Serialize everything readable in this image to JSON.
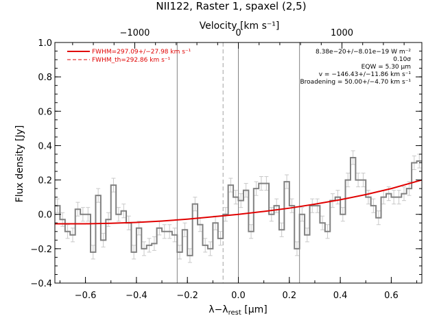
{
  "chart_data": {
    "type": "line",
    "title": "NII122, Raster 1, spaxel (2,5)",
    "xlabel": "λ−λrest [μm]",
    "xlabel_parts": {
      "main": "λ−λ",
      "sub": "rest",
      "unit": " [μm]"
    },
    "ylabel": "Flux density [Jy]",
    "top_axis_label": "Velocity [km s⁻¹]",
    "xlim": [
      -0.72,
      0.72
    ],
    "ylim": [
      -0.4,
      1.0
    ],
    "x_ticks": [
      "−0.6",
      "−0.4",
      "−0.2",
      "0.0",
      "0.2",
      "0.4",
      "0.6"
    ],
    "x_tick_values": [
      -0.6,
      -0.4,
      -0.2,
      0.0,
      0.2,
      0.4,
      0.6
    ],
    "y_ticks": [
      "−0.4",
      "−0.2",
      "0.0",
      "0.2",
      "0.4",
      "0.6",
      "0.8",
      "1.0"
    ],
    "y_tick_values": [
      -0.4,
      -0.2,
      0.0,
      0.2,
      0.4,
      0.6,
      0.8,
      1.0
    ],
    "top_ticks": [
      "−1000",
      "0",
      "1000"
    ],
    "top_tick_values": [
      -1000,
      0,
      1000
    ],
    "velocity_per_micron": 2460,
    "vertical_lines": {
      "solid": [
        -0.24,
        0.0,
        0.24
      ],
      "dashed": [
        -0.06
      ]
    },
    "legend": [
      {
        "label": "FWHM=297.09+/−27.98 km s⁻¹",
        "style": "solid",
        "color": "#e00000"
      },
      {
        "label": "FWHM_th=292.86 km s⁻¹",
        "style": "dashed",
        "color": "#e00000"
      }
    ],
    "annotations": [
      "8.38e−20+/−8.01e−19 W m⁻²",
      "0.10σ",
      "EQW = 5.30 μm",
      "v = −146.43+/−11.86 km s⁻¹",
      "Broadening = 50.00+/−4.70 km s⁻¹"
    ],
    "series": [
      {
        "style": "steps",
        "color": "#808080",
        "x": [
          -0.71,
          -0.69,
          -0.67,
          -0.65,
          -0.63,
          -0.61,
          -0.59,
          -0.57,
          -0.55,
          -0.53,
          -0.51,
          -0.49,
          -0.47,
          -0.45,
          -0.43,
          -0.41,
          -0.39,
          -0.37,
          -0.35,
          -0.33,
          -0.31,
          -0.29,
          -0.27,
          -0.25,
          -0.23,
          -0.21,
          -0.19,
          -0.17,
          -0.15,
          -0.13,
          -0.11,
          -0.09,
          -0.07,
          -0.05,
          -0.03,
          -0.01,
          0.01,
          0.03,
          0.05,
          0.07,
          0.09,
          0.11,
          0.13,
          0.15,
          0.17,
          0.19,
          0.21,
          0.23,
          0.25,
          0.27,
          0.29,
          0.31,
          0.33,
          0.35,
          0.37,
          0.39,
          0.41,
          0.43,
          0.45,
          0.47,
          0.49,
          0.51,
          0.53,
          0.55,
          0.57,
          0.59,
          0.61,
          0.63,
          0.65,
          0.67,
          0.69,
          0.71
        ],
        "y": [
          0.05,
          -0.03,
          -0.1,
          -0.12,
          0.03,
          0.0,
          0.0,
          -0.22,
          0.11,
          -0.15,
          -0.03,
          0.17,
          0.0,
          0.02,
          -0.05,
          -0.22,
          -0.08,
          -0.2,
          -0.18,
          -0.17,
          -0.08,
          -0.1,
          -0.1,
          -0.12,
          -0.22,
          -0.09,
          -0.24,
          0.06,
          -0.06,
          -0.18,
          -0.2,
          -0.05,
          -0.14,
          0.0,
          0.17,
          0.1,
          0.08,
          0.14,
          -0.1,
          0.15,
          0.18,
          0.18,
          0.0,
          0.05,
          -0.09,
          0.19,
          0.05,
          -0.2,
          0.0,
          -0.12,
          0.05,
          0.05,
          -0.05,
          -0.1,
          0.08,
          0.1,
          0.0,
          0.2,
          0.33,
          0.2,
          0.2,
          0.1,
          0.05,
          -0.02,
          0.1,
          0.12,
          0.1,
          0.1,
          0.12,
          0.15,
          0.3,
          0.31
        ],
        "err": 0.04
      },
      {
        "style": "line",
        "color": "#e00000",
        "x": [
          -0.72,
          -0.6,
          -0.5,
          -0.4,
          -0.3,
          -0.2,
          -0.1,
          0.0,
          0.1,
          0.2,
          0.3,
          0.4,
          0.5,
          0.6,
          0.72
        ],
        "y": [
          -0.055,
          -0.055,
          -0.052,
          -0.047,
          -0.039,
          -0.028,
          -0.014,
          0.0,
          0.017,
          0.036,
          0.059,
          0.085,
          0.115,
          0.15,
          0.2
        ]
      }
    ],
    "grid": false
  }
}
